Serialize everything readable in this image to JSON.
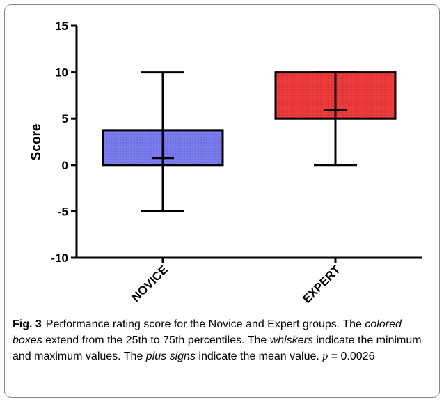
{
  "chart_data": {
    "type": "box",
    "ylabel": "Score",
    "ylim": [
      -10,
      15
    ],
    "yticks": [
      -10,
      -5,
      0,
      5,
      10,
      15
    ],
    "categories": [
      "NOVICE",
      "EXPERT"
    ],
    "boxes": [
      {
        "category": "NOVICE",
        "min": -5,
        "q1": 0,
        "q3": 3.75,
        "max": 10,
        "mean": 0.75,
        "color": "#7b7bf0"
      },
      {
        "category": "EXPERT",
        "min": 0,
        "q1": 5,
        "q3": 10,
        "max": 10,
        "mean": 5.9,
        "color": "#ef3b3b"
      }
    ],
    "grid": false
  },
  "caption": {
    "label": "Fig. 3",
    "parts": [
      {
        "t": "Performance rating score for the Novice and Expert groups. The ",
        "i": false
      },
      {
        "t": "colored boxes",
        "i": true
      },
      {
        "t": " extend from the 25th to 75th percentiles. The ",
        "i": false
      },
      {
        "t": "whiskers",
        "i": true
      },
      {
        "t": " indicate the minimum and maximum values. The ",
        "i": false
      },
      {
        "t": "plus signs",
        "i": true
      },
      {
        "t": " indicate the mean value. ",
        "i": false
      }
    ],
    "p_symbol": "p",
    "p_rest": " = 0.0026"
  }
}
